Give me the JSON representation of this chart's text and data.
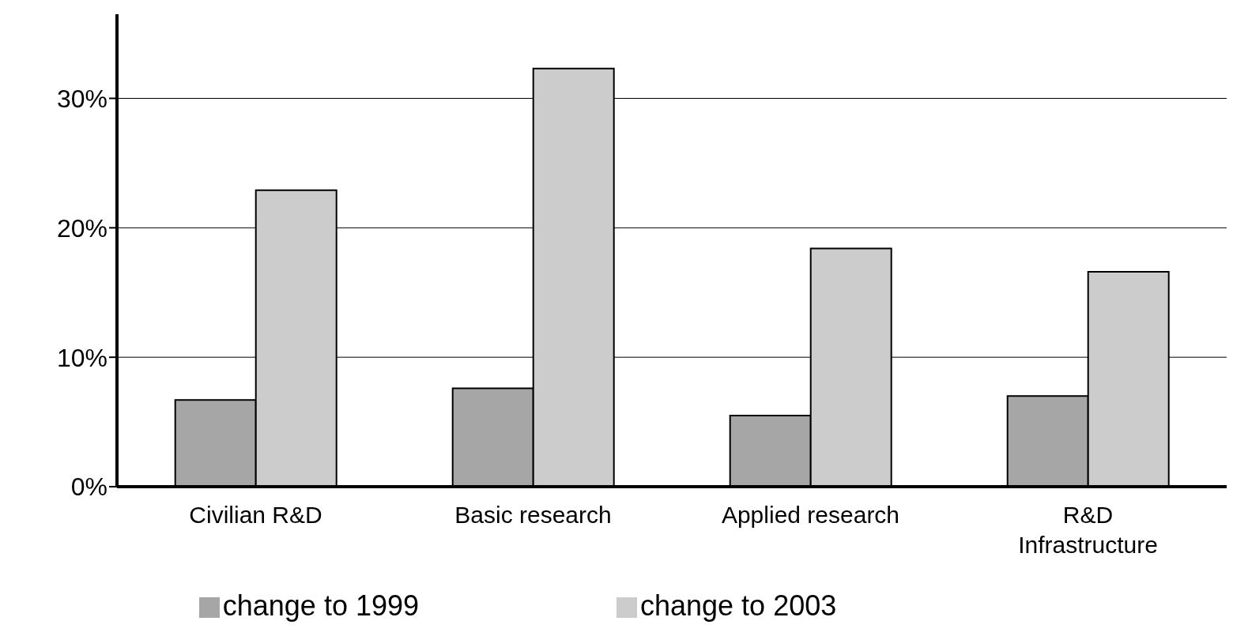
{
  "chart_data": {
    "type": "bar",
    "categories": [
      "Civilian R&D",
      "Basic research",
      "Applied research",
      "R&D Infrastructure"
    ],
    "series": [
      {
        "name": "change to 1999",
        "color": "#a6a6a6",
        "values": [
          6.7,
          7.6,
          5.5,
          7.0
        ]
      },
      {
        "name": "change to 2003",
        "color": "#cccccc",
        "values": [
          22.9,
          32.3,
          18.4,
          16.6
        ]
      }
    ],
    "ylim": [
      0,
      36.5
    ],
    "yticks": [
      {
        "value": 0,
        "label": "0%"
      },
      {
        "value": 10,
        "label": "10%"
      },
      {
        "value": 20,
        "label": "20%"
      },
      {
        "value": 30,
        "label": "30%"
      }
    ],
    "grid": "y",
    "legend": "bottom"
  }
}
